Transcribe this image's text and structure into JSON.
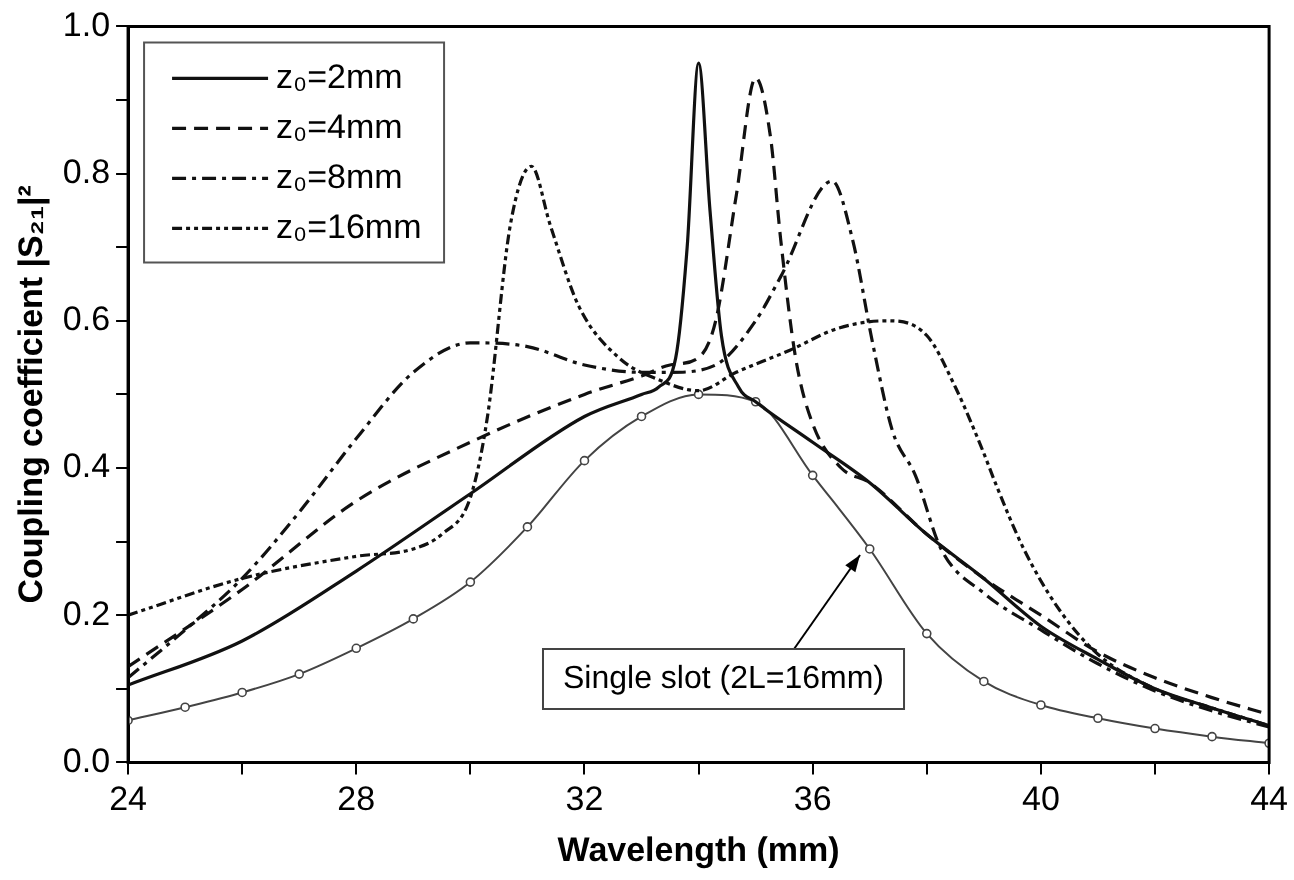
{
  "chart_data": {
    "type": "line",
    "xlabel": "Wavelength (mm)",
    "ylabel": "Coupling coefficient |S₂₁|²",
    "xlim": [
      24,
      44
    ],
    "ylim": [
      0,
      1
    ],
    "xticks": [
      24,
      {
        "value": 26,
        "label": null
      },
      28,
      {
        "value": 30,
        "label": null
      },
      32,
      {
        "value": 34,
        "label": null
      },
      36,
      {
        "value": 38,
        "label": null
      },
      40,
      {
        "value": 42,
        "label": null
      },
      44
    ],
    "yticks": [
      {
        "value": 0,
        "label": "0.0"
      },
      {
        "value": 0.1,
        "label": null
      },
      0.2,
      {
        "value": 0.3,
        "label": null
      },
      0.4,
      {
        "value": 0.5,
        "label": null
      },
      0.6,
      {
        "value": 0.7,
        "label": null
      },
      0.8,
      {
        "value": 0.9,
        "label": null
      },
      {
        "value": 1,
        "label": "1.0"
      }
    ],
    "grid": false,
    "legend": "top left",
    "series": [
      {
        "name": "z₀=2mm",
        "color": "#111111",
        "line_style": "solid",
        "marker": "none",
        "x": [
          24,
          26,
          28,
          30,
          32,
          33,
          33.3,
          33.6,
          33.8,
          34,
          34.2,
          34.4,
          34.7,
          35,
          36,
          37,
          38,
          39,
          40,
          41,
          42,
          43,
          44
        ],
        "values": [
          0.105,
          0.165,
          0.26,
          0.365,
          0.47,
          0.5,
          0.51,
          0.55,
          0.7,
          0.95,
          0.75,
          0.58,
          0.51,
          0.49,
          0.435,
          0.38,
          0.31,
          0.25,
          0.185,
          0.14,
          0.1,
          0.074,
          0.05
        ]
      },
      {
        "name": "z₀=4mm",
        "color": "#111111",
        "line_style": "dashed",
        "marker": "none",
        "x": [
          24,
          26,
          28,
          30,
          32,
          33,
          33.5,
          34,
          34.3,
          34.66,
          35,
          35.26,
          35.44,
          35.7,
          36,
          36.5,
          37,
          38,
          39,
          40,
          41,
          42,
          43,
          44
        ],
        "values": [
          0.13,
          0.235,
          0.355,
          0.435,
          0.5,
          0.525,
          0.54,
          0.55,
          0.6,
          0.77,
          0.93,
          0.85,
          0.71,
          0.55,
          0.46,
          0.4,
          0.38,
          0.31,
          0.25,
          0.2,
          0.15,
          0.115,
          0.088,
          0.065
        ]
      },
      {
        "name": "z₀=8mm",
        "color": "#111111",
        "line_style": "dashdot",
        "marker": "none",
        "x": [
          24,
          25,
          26,
          27,
          28,
          29,
          30,
          31,
          32,
          33,
          33.5,
          34.3,
          35,
          35.44,
          36.34,
          36.7,
          37.05,
          37.4,
          37.8,
          38.25,
          39,
          40,
          41,
          42,
          43,
          44
        ],
        "values": [
          0.115,
          0.18,
          0.25,
          0.34,
          0.44,
          0.53,
          0.57,
          0.565,
          0.54,
          0.53,
          0.53,
          0.54,
          0.6,
          0.66,
          0.79,
          0.71,
          0.57,
          0.45,
          0.39,
          0.29,
          0.23,
          0.18,
          0.134,
          0.097,
          0.07,
          0.048
        ]
      },
      {
        "name": "z₀=16mm",
        "color": "#111111",
        "line_style": "dotted",
        "marker": "none",
        "x": [
          24,
          26,
          28,
          29,
          29.5,
          30,
          30.3,
          30.7,
          31.07,
          31.4,
          31.9,
          32.6,
          33.3,
          34,
          34.66,
          35.6,
          36.45,
          37.3,
          38,
          38.5,
          39,
          39.2,
          39.7,
          40.3,
          41,
          42,
          43,
          44
        ],
        "values": [
          0.2,
          0.25,
          0.28,
          0.29,
          0.31,
          0.36,
          0.47,
          0.73,
          0.81,
          0.73,
          0.62,
          0.55,
          0.52,
          0.505,
          0.53,
          0.56,
          0.59,
          0.6,
          0.58,
          0.51,
          0.42,
          0.38,
          0.29,
          0.21,
          0.147,
          0.1,
          0.074,
          0.05
        ]
      },
      {
        "color": "#444444",
        "line_style": "solid",
        "marker": "circle",
        "x": [
          24,
          25,
          26,
          27,
          28,
          29,
          30,
          31,
          32,
          33,
          34,
          35,
          36,
          37,
          38,
          39,
          40,
          41,
          42,
          43,
          44
        ],
        "values": [
          0.057,
          0.075,
          0.095,
          0.12,
          0.155,
          0.195,
          0.245,
          0.32,
          0.41,
          0.47,
          0.5,
          0.49,
          0.39,
          0.29,
          0.175,
          0.11,
          0.078,
          0.06,
          0.046,
          0.035,
          0.026
        ]
      }
    ],
    "annotations": [
      {
        "text": "Single slot (2L=16mm)",
        "x": 36.9,
        "y": 0.29
      }
    ]
  }
}
